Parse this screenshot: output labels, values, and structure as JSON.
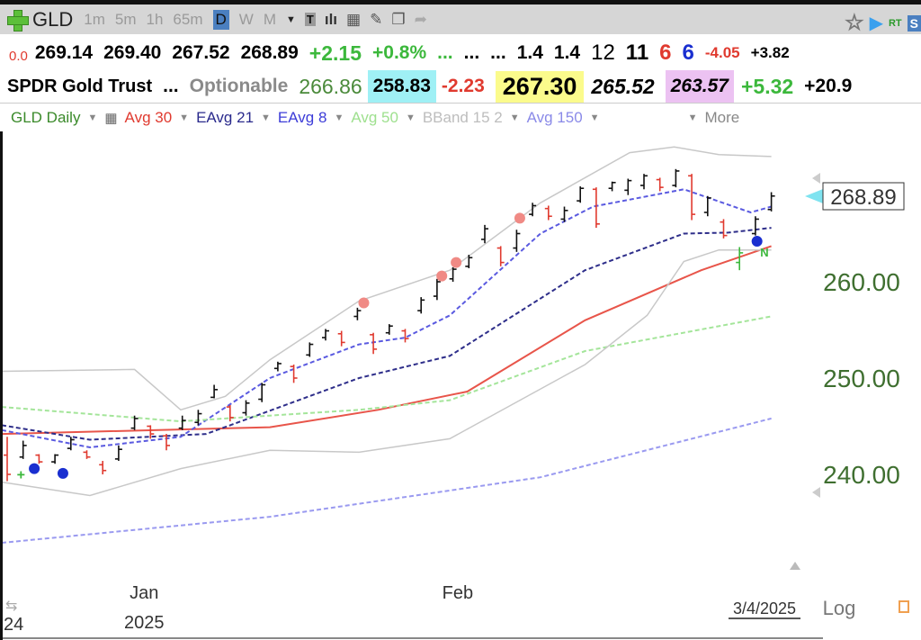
{
  "toolbar": {
    "symbol": "GLD",
    "intervals": [
      "1m",
      "5m",
      "1h",
      "65m",
      "D",
      "W",
      "M"
    ],
    "active_interval": "D",
    "right": {
      "rt": "RT",
      "s": "S"
    }
  },
  "quote": {
    "v0": "0.0",
    "open": "269.14",
    "high": "269.40",
    "low": "267.52",
    "last": "268.89",
    "change": "+2.15",
    "pct": "+0.8%",
    "dots": [
      "...",
      "...",
      "..."
    ],
    "n1": "1.4",
    "n2": "1.4",
    "n3": "12",
    "n4": "11",
    "n5": "6",
    "n6": "6",
    "n7": "-4.05",
    "n8": "+3.82"
  },
  "info": {
    "name": "SPDR Gold Trust",
    "dots": "...",
    "optionable": "Optionable",
    "v1": "266.86",
    "v2": "258.83",
    "v3": "-2.23",
    "v4": "267.30",
    "v5": "265.52",
    "v6": "263.57",
    "v7": "+5.32",
    "v8": "+20.9"
  },
  "indicators": {
    "chart": "GLD Daily",
    "items": [
      {
        "label": "Avg 30",
        "color": "#e03a2f"
      },
      {
        "label": "EAvg 21",
        "color": "#2a2a8c"
      },
      {
        "label": "EAvg 8",
        "color": "#3c3cd8"
      },
      {
        "label": "Avg 50",
        "color": "#9ee08e"
      },
      {
        "label": "BBand 15 2",
        "color": "#bdbdbd"
      },
      {
        "label": "Avg 150",
        "color": "#8a8ae8"
      }
    ],
    "more": "More"
  },
  "chart_data": {
    "type": "ohlc",
    "ylim": [
      231,
      279
    ],
    "yticks": [
      240,
      250,
      260
    ],
    "ytick_labels": [
      "240.00",
      "250.00",
      "260.00"
    ],
    "last_price": "268.89",
    "x_labels": [
      {
        "i": 8.6,
        "label": "Jan",
        "sub": "2025"
      },
      {
        "i": 28.3,
        "label": "Feb",
        "sub": ""
      }
    ],
    "left_label": "24",
    "date_label": "3/4/2025",
    "scale_label": "Log",
    "bars": [
      [
        242,
        243.9,
        239.3,
        240,
        "r"
      ],
      [
        241.8,
        243.5,
        241.6,
        243,
        "b"
      ],
      [
        242,
        242.1,
        241.1,
        241.3,
        "r"
      ],
      [
        241.3,
        242.1,
        241.1,
        242,
        "b"
      ],
      [
        242.7,
        243.9,
        242.5,
        243.6,
        "b"
      ],
      [
        242.3,
        242.5,
        241.6,
        241.8,
        "r"
      ],
      [
        241,
        241.4,
        240,
        240.4,
        "r"
      ],
      [
        241.6,
        243,
        241.4,
        242.6,
        "b"
      ],
      [
        244.8,
        246.1,
        244.6,
        245.8,
        "b"
      ],
      [
        245,
        245.1,
        243.7,
        244.2,
        "r"
      ],
      [
        244,
        244.2,
        242.5,
        243,
        "r"
      ],
      [
        244.8,
        246.1,
        244.6,
        245.6,
        "b"
      ],
      [
        245.4,
        246.7,
        245.1,
        246.3,
        "b"
      ],
      [
        248,
        249.3,
        247.9,
        248.8,
        "b"
      ],
      [
        247,
        247.2,
        245.5,
        245.9,
        "r"
      ],
      [
        246.4,
        247.7,
        246.1,
        247.4,
        "b"
      ],
      [
        247.8,
        249.5,
        247.5,
        249.3,
        "b"
      ],
      [
        251,
        251.7,
        250.7,
        251.5,
        "b"
      ],
      [
        251.2,
        251.4,
        249.5,
        250,
        "r"
      ],
      [
        252.4,
        253.7,
        252.2,
        253.5,
        "b"
      ],
      [
        254.2,
        255.1,
        253.9,
        254.9,
        "b"
      ],
      [
        254.6,
        254.9,
        253.3,
        253.7,
        "r"
      ],
      [
        256.4,
        257.3,
        256,
        257,
        "b"
      ],
      [
        254.5,
        254.7,
        252.5,
        253,
        "r"
      ],
      [
        254.7,
        255.6,
        254.5,
        255.4,
        "b"
      ],
      [
        254.9,
        255.1,
        253.7,
        254.1,
        "r"
      ],
      [
        257,
        258.4,
        256.7,
        258.1,
        "b"
      ],
      [
        258.5,
        260.3,
        258.1,
        260,
        "b"
      ],
      [
        260.3,
        261.5,
        260,
        261.3,
        "b"
      ],
      [
        261.6,
        262.8,
        261.4,
        262.5,
        "b"
      ],
      [
        264.4,
        265.9,
        264,
        265.5,
        "b"
      ],
      [
        263.5,
        263.7,
        261.6,
        262,
        "r"
      ],
      [
        263.5,
        265.4,
        263.1,
        265,
        "b"
      ],
      [
        267,
        268.2,
        266.8,
        267.9,
        "b"
      ],
      [
        267.6,
        267.9,
        266.4,
        266.8,
        "r"
      ],
      [
        266.5,
        267.8,
        266.2,
        267.4,
        "b"
      ],
      [
        268.4,
        269.9,
        268.2,
        269.7,
        "b"
      ],
      [
        269.6,
        269.8,
        265.6,
        266,
        "r"
      ],
      [
        269.7,
        270.4,
        269.4,
        270.3,
        "b"
      ],
      [
        269.5,
        270.7,
        269,
        270.5,
        "b"
      ],
      [
        270,
        271.2,
        269.6,
        271,
        "b"
      ],
      [
        270.6,
        270.8,
        269.4,
        269.8,
        "r"
      ],
      [
        270,
        271.7,
        269.8,
        271.5,
        "b"
      ],
      [
        271,
        271.2,
        266.4,
        267,
        "r"
      ],
      [
        267.2,
        268.9,
        266.8,
        268.7,
        "b"
      ],
      [
        266.2,
        266.5,
        264.5,
        264.8,
        "r"
      ],
      [
        262,
        263.6,
        261.2,
        263,
        "g"
      ],
      [
        265,
        266.8,
        264.8,
        266.5,
        "b"
      ],
      [
        267.5,
        269.3,
        267.3,
        268.9,
        "b"
      ]
    ],
    "series": [
      {
        "name": "Avg 30",
        "color": "#e8554a",
        "dash": false,
        "points": [
          [
            -0.5,
            244.2
          ],
          [
            16.5,
            244.9
          ],
          [
            23.3,
            246.7
          ],
          [
            28.9,
            248.6
          ],
          [
            36.3,
            256
          ],
          [
            43.6,
            261.2
          ],
          [
            48,
            263.7
          ]
        ]
      },
      {
        "name": "EAvg 21",
        "color": "#2e2e8a",
        "dash": true,
        "points": [
          [
            -0.5,
            245.1
          ],
          [
            5.2,
            243.6
          ],
          [
            12.5,
            244.2
          ],
          [
            22.1,
            250
          ],
          [
            27.8,
            252.3
          ],
          [
            36.3,
            261.2
          ],
          [
            42.5,
            265
          ],
          [
            45.3,
            265.1
          ],
          [
            48,
            265.6
          ]
        ]
      },
      {
        "name": "EAvg 8",
        "color": "#5a5ae0",
        "dash": true,
        "points": [
          [
            -0.5,
            244.6
          ],
          [
            5.2,
            242.8
          ],
          [
            10.9,
            243.9
          ],
          [
            16.5,
            250
          ],
          [
            22.1,
            253.5
          ],
          [
            25,
            254.2
          ],
          [
            27.8,
            256.5
          ],
          [
            33.5,
            265
          ],
          [
            36.8,
            267.8
          ],
          [
            42.5,
            269.6
          ],
          [
            45.3,
            268
          ],
          [
            46.7,
            267.2
          ],
          [
            48,
            267.8
          ]
        ]
      },
      {
        "name": "Avg 50",
        "color": "#a4e59a",
        "dash": true,
        "points": [
          [
            -0.5,
            247
          ],
          [
            10.9,
            245.5
          ],
          [
            22.1,
            246.7
          ],
          [
            27.8,
            247.7
          ],
          [
            36.3,
            252.8
          ],
          [
            48,
            256.4
          ]
        ]
      },
      {
        "name": "Avg 150",
        "color": "#9a9af0",
        "dash": true,
        "points": [
          [
            -0.5,
            232.9
          ],
          [
            16.5,
            235.6
          ],
          [
            33.5,
            239.7
          ],
          [
            48,
            245.8
          ]
        ]
      },
      {
        "name": "BBand upper",
        "color": "#c8c8c8",
        "dash": false,
        "points": [
          [
            -0.5,
            250.7
          ],
          [
            8,
            250.9
          ],
          [
            10.9,
            246.7
          ],
          [
            13.7,
            248.1
          ],
          [
            16.5,
            251.9
          ],
          [
            22.1,
            258
          ],
          [
            27.8,
            261.2
          ],
          [
            33.5,
            268.2
          ],
          [
            39.1,
            273.4
          ],
          [
            41.9,
            274
          ],
          [
            44.7,
            273.2
          ],
          [
            48,
            273
          ]
        ]
      },
      {
        "name": "BBand lower",
        "color": "#c8c8c8",
        "dash": false,
        "points": [
          [
            -0.5,
            239.2
          ],
          [
            5.2,
            237.8
          ],
          [
            10.9,
            240.6
          ],
          [
            16.5,
            242.5
          ],
          [
            22.1,
            242.3
          ],
          [
            27.8,
            243.7
          ],
          [
            36.3,
            251.4
          ],
          [
            40.2,
            256.5
          ],
          [
            42.5,
            262.1
          ],
          [
            44.7,
            263.3
          ],
          [
            48,
            263.3
          ]
        ]
      }
    ],
    "markers": [
      {
        "i": 1.7,
        "p": 240.6,
        "color": "#1a2fd0"
      },
      {
        "i": 3.5,
        "p": 240.1,
        "color": "#1a2fd0"
      },
      {
        "i": 47.1,
        "p": 264.2,
        "color": "#1a2fd0"
      },
      {
        "i": 22.4,
        "p": 257.8,
        "color": "#f08a85"
      },
      {
        "i": 27.3,
        "p": 260.6,
        "color": "#f08a85"
      },
      {
        "i": 28.2,
        "p": 262,
        "color": "#f08a85"
      },
      {
        "i": 32.2,
        "p": 266.6,
        "color": "#f08a85"
      }
    ],
    "annotations": [
      {
        "i": 47.3,
        "p": 262.6,
        "text": "N"
      },
      {
        "i": 0.6,
        "p": 239.5,
        "text": "+"
      }
    ]
  }
}
